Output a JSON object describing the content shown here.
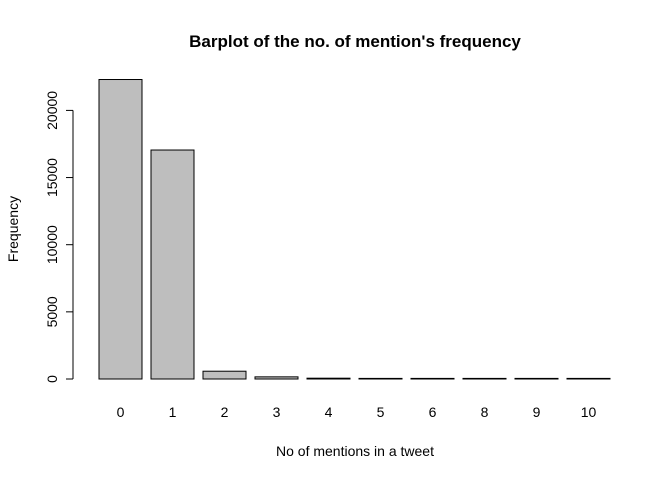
{
  "chart_data": {
    "type": "bar",
    "title": "Barplot of the no. of mention's frequency",
    "xlabel": "No of mentions in a tweet",
    "ylabel": "Frequency",
    "categories": [
      "0",
      "1",
      "2",
      "3",
      "4",
      "5",
      "6",
      "8",
      "9",
      "10"
    ],
    "values": [
      22300,
      17050,
      580,
      160,
      60,
      40,
      15,
      8,
      5,
      3
    ],
    "ylim": [
      0,
      23000
    ],
    "yticks": [
      0,
      5000,
      10000,
      15000,
      20000
    ],
    "ytick_labels": [
      "0",
      "5000",
      "10000",
      "15000",
      "20000"
    ],
    "grid": false,
    "bar_fill": "#bebebe",
    "bar_stroke": "#000000"
  }
}
